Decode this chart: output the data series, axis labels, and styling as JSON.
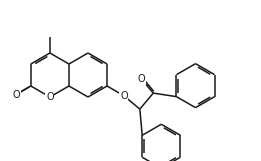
{
  "bg_color": "#ffffff",
  "line_color": "#1a1a1a",
  "line_width": 1.1,
  "dbo": 0.018,
  "figsize": [
    2.61,
    1.61
  ],
  "dpi": 100,
  "xlim": [
    0,
    2.61
  ],
  "ylim": [
    0,
    1.61
  ],
  "ring_r": 0.22,
  "font_size": 7.5,
  "o_font_size": 7.0
}
